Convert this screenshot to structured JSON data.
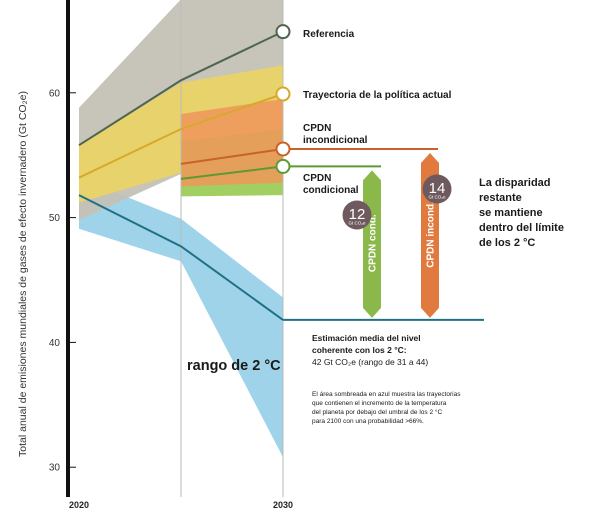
{
  "chart_data": {
    "type": "line",
    "ylabel": "Total anual de emisiones mundiales de gases de efecto invernadero (Gt CO₂e)",
    "x_ticks": [
      "2020",
      "2030"
    ],
    "y_ticks": [
      30,
      40,
      50,
      60
    ],
    "xlim": [
      2020,
      2030
    ],
    "ylim": [
      29,
      67.5
    ],
    "colors": {
      "referencia": "#4e6550",
      "politica": "#d6a92a",
      "incondicional": "#c8622a",
      "condicional": "#5d9a32",
      "dos_grados": "#1e7187",
      "gap_bar_cond": "#8ab84a",
      "gap_bar_incond": "#e07a3e",
      "circle": "#6e5a5e"
    },
    "series": [
      {
        "key": "referencia",
        "name": "Referencia",
        "x": [
          2020,
          2025,
          2030
        ],
        "values": [
          55.8,
          61,
          64.9
        ],
        "band_low": [
          49.8,
          53.5,
          55.5
        ],
        "band_high": [
          58.8,
          67.5,
          67.5
        ]
      },
      {
        "key": "politica",
        "name": "Trayectoria de la política actual",
        "x": [
          2020,
          2025,
          2030
        ],
        "values": [
          53.2,
          57.1,
          59.9
        ],
        "band_low": [
          51.2,
          53.6,
          54.5
        ],
        "band_high": [
          55.8,
          60.8,
          62.2
        ]
      },
      {
        "key": "incondicional",
        "name": "CPDN incondicional",
        "x": [
          2025,
          2030
        ],
        "values": [
          54.3,
          55.5
        ],
        "band_low": [
          52.5,
          52.8
        ],
        "band_high": [
          58.3,
          59.5
        ]
      },
      {
        "key": "condicional",
        "name": "CPDN condicional",
        "x": [
          2025,
          2030
        ],
        "values": [
          53.1,
          54.1
        ],
        "band_low": [
          51.7,
          51.8
        ],
        "band_high": [
          56.1,
          57.1
        ]
      },
      {
        "key": "dos_grados",
        "name": "rango de 2 °C",
        "x": [
          2020,
          2025,
          2030
        ],
        "values": [
          51.8,
          47.7,
          41.8
        ],
        "band_low": [
          49.1,
          46.5,
          30.8
        ],
        "band_high": [
          53.2,
          49.9,
          43.6
        ]
      }
    ],
    "gaps": [
      {
        "key": "condicional",
        "value": 12,
        "unit": "Gt CO₂e",
        "label": "CPDN cond.",
        "from": 41.8,
        "to": 54.1
      },
      {
        "key": "incondicional",
        "value": 14,
        "unit": "Gt CO₂e",
        "label": "CPDN incond.",
        "from": 41.8,
        "to": 55.5
      }
    ],
    "annotations": {
      "referencia": "Referencia",
      "politica": "Trayectoria de la política actual",
      "incondicional_1": "CPDN",
      "incondicional_2": "incondicional",
      "condicional_1": "CPDN",
      "condicional_2": "condicional",
      "gap_1": "La disparidad",
      "gap_2": "restante",
      "gap_3": "se mantiene",
      "gap_4": "dentro del límite",
      "gap_5": "de los 2 °C",
      "range": "rango de 2 °C",
      "estimate_1": "Estimación media del nivel",
      "estimate_2": "coherente con los 2 °C:",
      "estimate_3": "42 Gt CO₂e (rango de 31 a 44)",
      "note_1": "El área sombreada en azul muestra las trayectorias",
      "note_2": "que contienen el incremento de la temperatura",
      "note_3": "del planeta por debajo del umbral de los 2 °C",
      "note_4": "para 2100 con una probabilidad >66%."
    }
  }
}
